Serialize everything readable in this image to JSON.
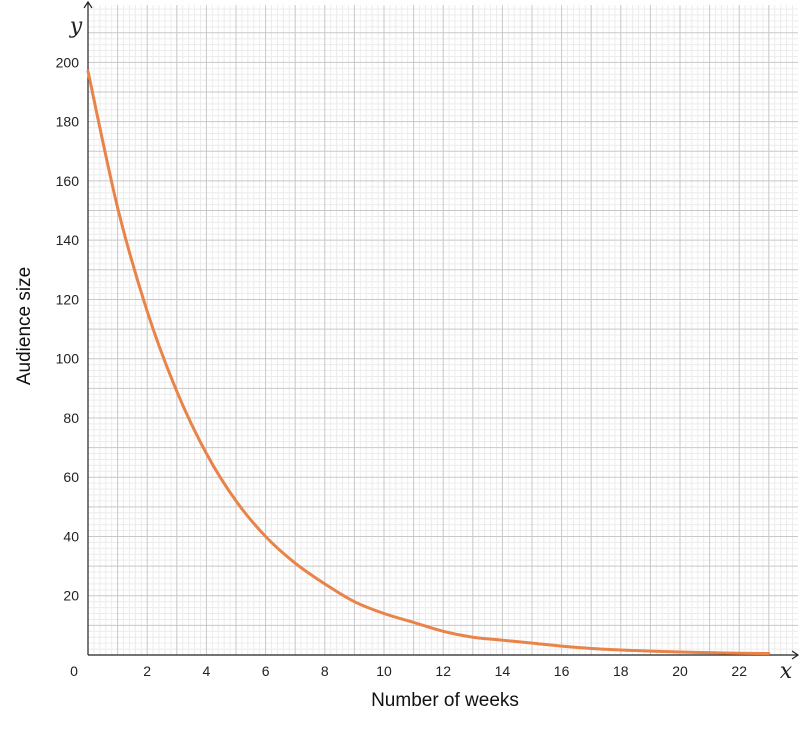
{
  "chart_data": {
    "type": "line",
    "title": "",
    "xlabel": "Number of weeks",
    "ylabel": "Audience size",
    "x_axis_var": "x",
    "y_axis_var": "y",
    "origin_label": "0",
    "xlim": [
      0,
      24
    ],
    "ylim": [
      0,
      220
    ],
    "x_ticks": [
      2,
      4,
      6,
      8,
      10,
      12,
      14,
      16,
      18,
      20,
      22
    ],
    "y_ticks": [
      20,
      40,
      60,
      80,
      100,
      120,
      140,
      160,
      180,
      200
    ],
    "grid": true,
    "curve_color": "#e8834a",
    "series": [
      {
        "x": [
          0,
          1,
          2,
          3,
          4,
          5,
          6,
          7,
          8,
          9,
          10,
          11,
          12,
          13,
          14,
          15,
          16,
          17,
          18,
          19,
          20,
          21,
          22,
          23,
          24
        ],
        "values": [
          197,
          151,
          116,
          89,
          68,
          52,
          40,
          31,
          24,
          18,
          14,
          11,
          8,
          6,
          5,
          4,
          3,
          2.2,
          1.7,
          1.3,
          1.0,
          0.8,
          0.6,
          0.5,
          0.4
        ]
      }
    ]
  }
}
